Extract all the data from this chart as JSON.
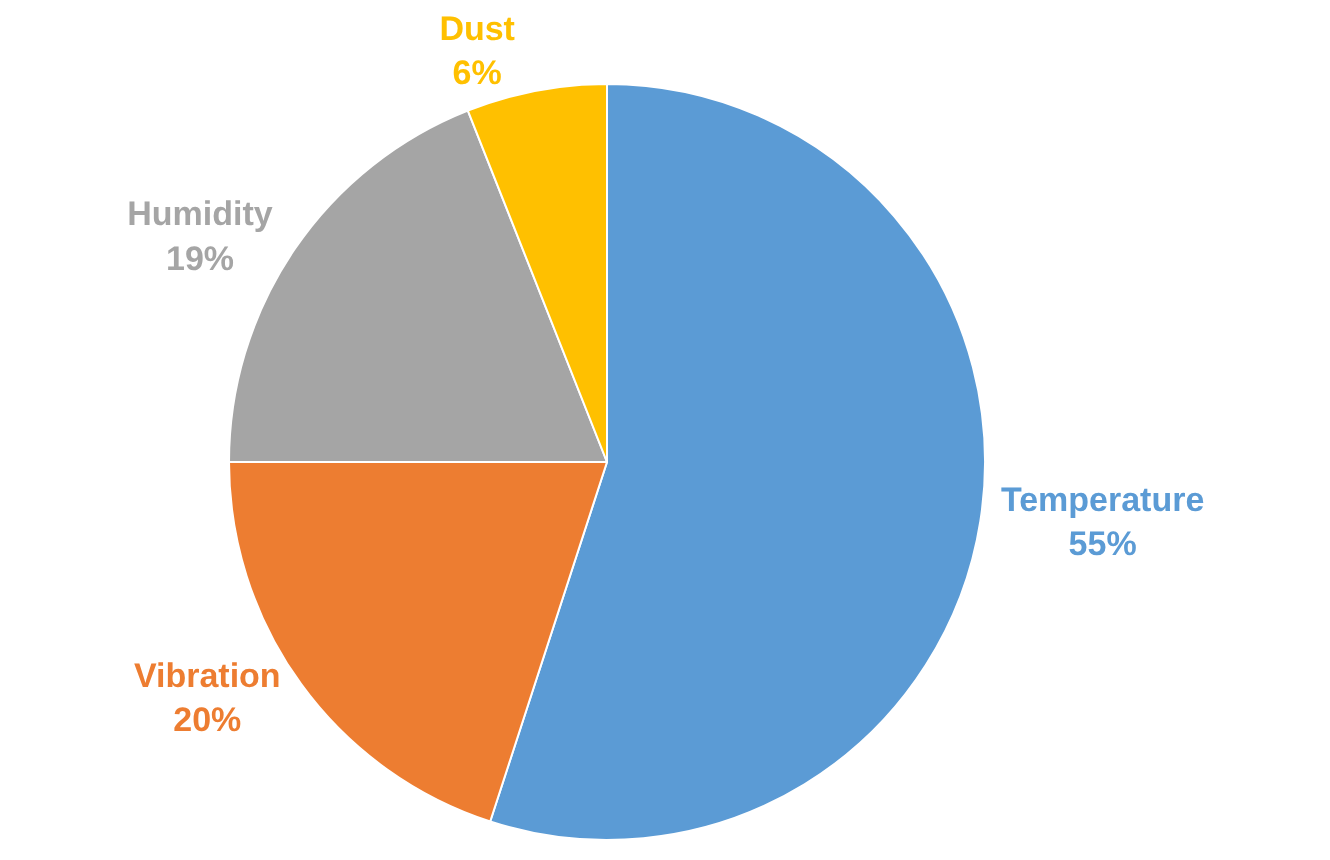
{
  "chart_data": {
    "type": "pie",
    "categories": [
      "Temperature",
      "Vibration",
      "Humidity",
      "Dust"
    ],
    "values": [
      55,
      20,
      19,
      6
    ],
    "value_labels": [
      "55%",
      "20%",
      "19%",
      "6%"
    ],
    "colors": [
      "#5b9bd5",
      "#ed7d31",
      "#a5a5a5",
      "#ffc000"
    ],
    "legend": false
  }
}
